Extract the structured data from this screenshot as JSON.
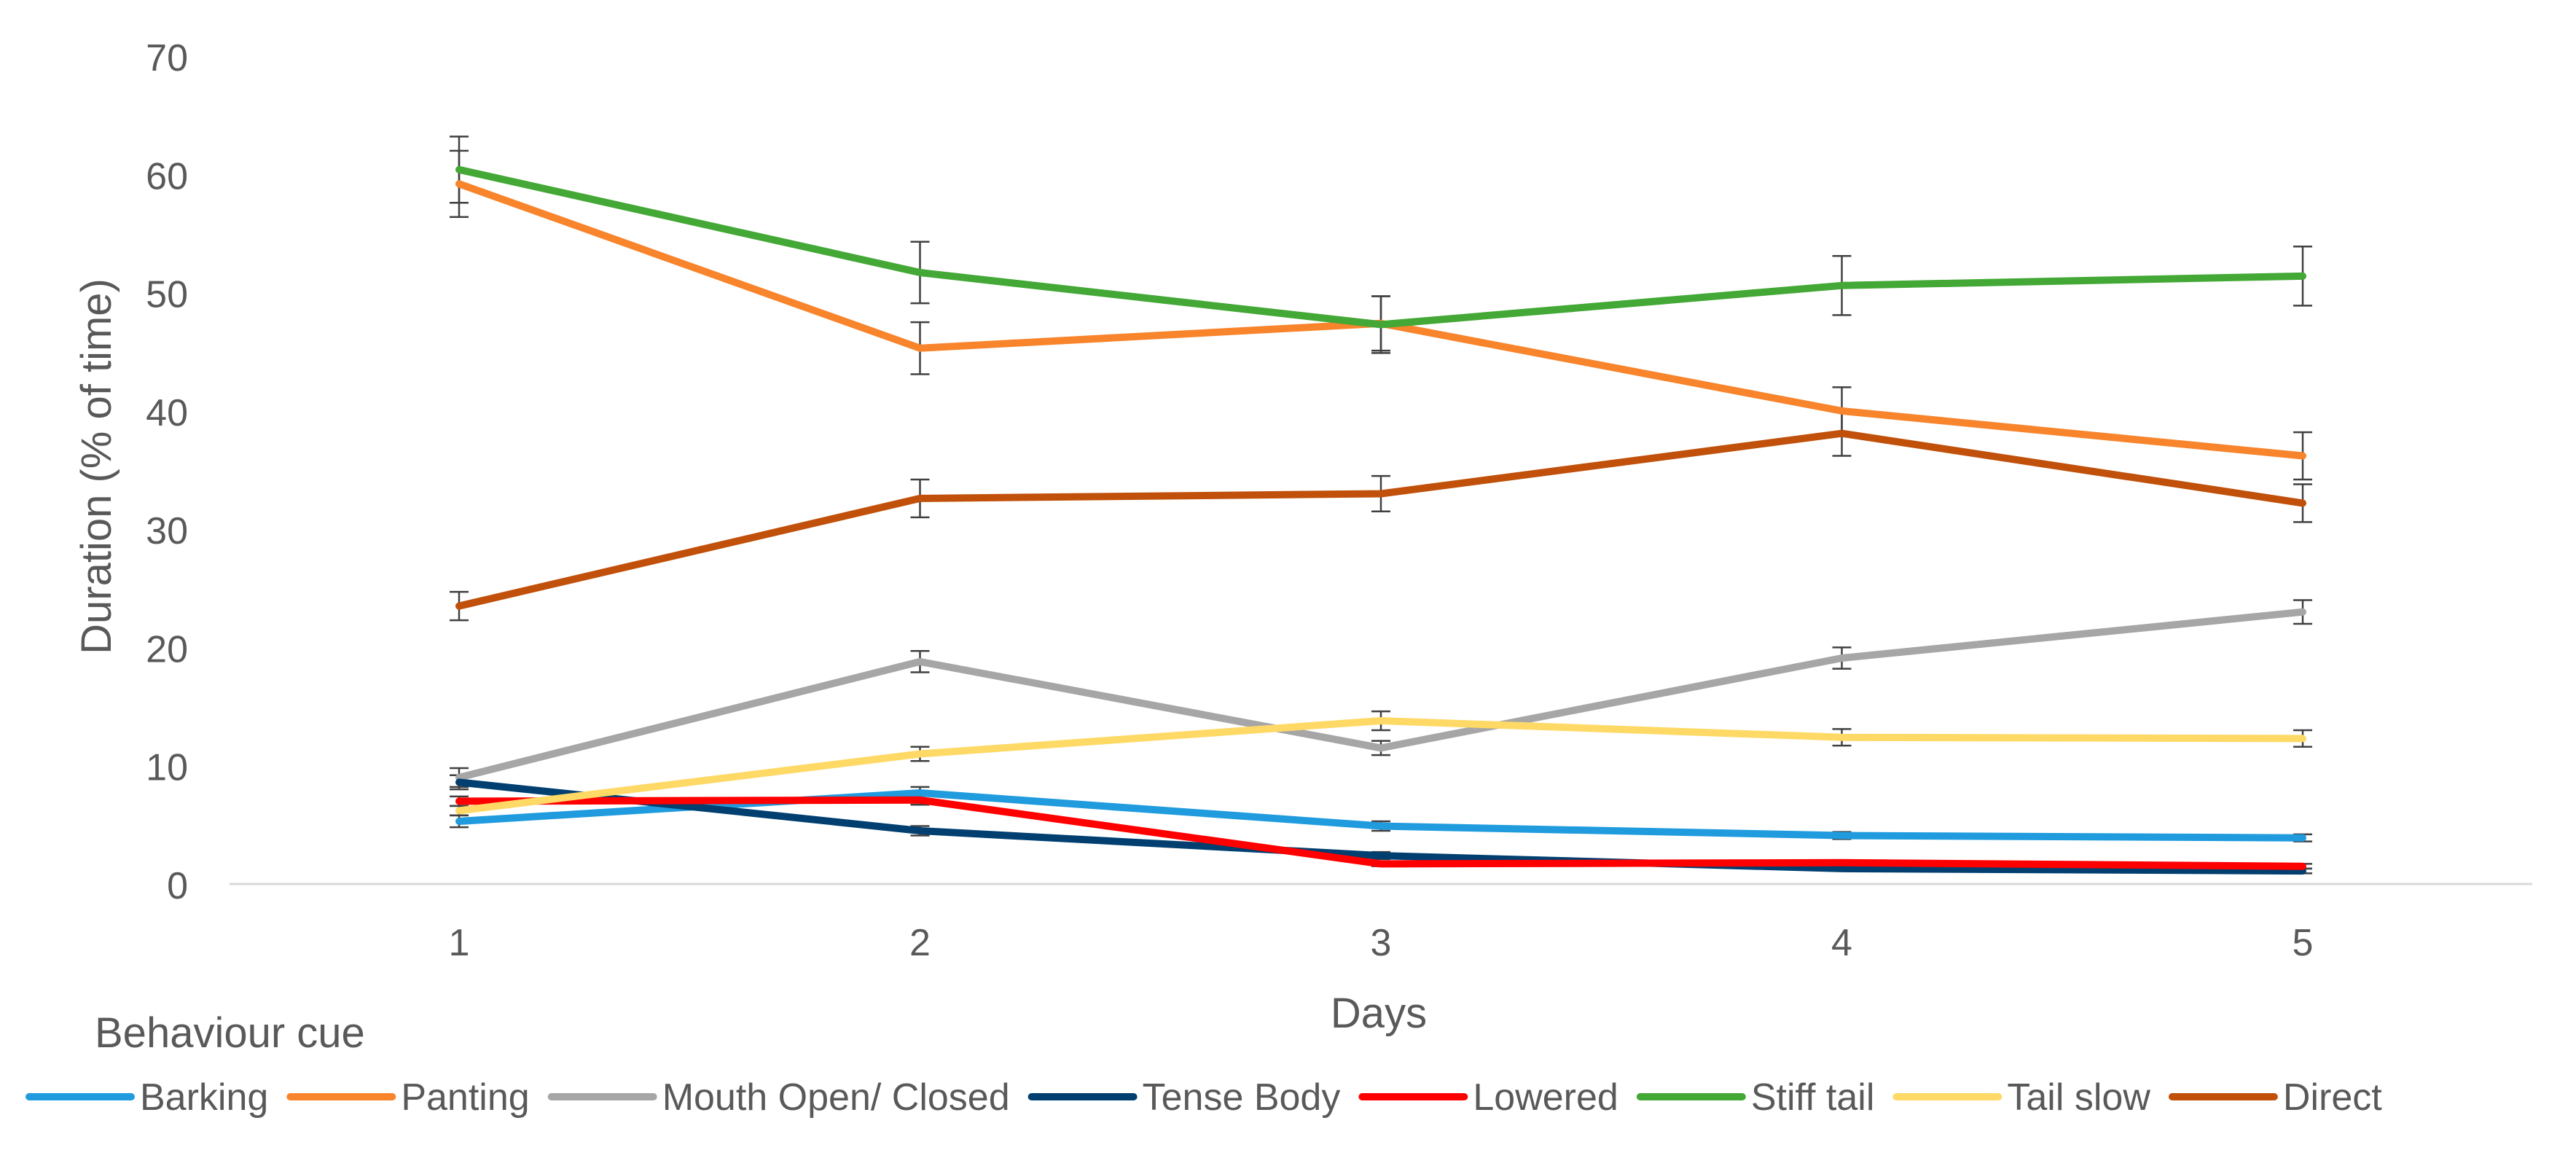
{
  "chart_data": {
    "type": "line",
    "title": "",
    "xlabel": "Days",
    "ylabel": "Duration (% of time)",
    "x": [
      1,
      2,
      3,
      4,
      5
    ],
    "x_tick_labels": [
      "1",
      "2",
      "3",
      "4",
      "5"
    ],
    "ylim": [
      0,
      70
    ],
    "y_ticks": [
      0,
      10,
      20,
      30,
      40,
      50,
      60,
      70
    ],
    "y_tick_labels": [
      "0",
      "10",
      "20",
      "30",
      "40",
      "50",
      "60",
      "70"
    ],
    "grid": false,
    "legend_title": "Behaviour cue",
    "legend_position": "bottom",
    "series": [
      {
        "name": "Barking",
        "color": "#1F9BDE",
        "values": [
          5.3,
          7.7,
          4.9,
          4.1,
          3.9
        ],
        "errors": [
          0.5,
          0.5,
          0.4,
          0.3,
          0.3
        ]
      },
      {
        "name": "Panting",
        "color": "#F8842C",
        "values": [
          59.2,
          45.3,
          47.4,
          40.0,
          36.2
        ],
        "errors": [
          2.8,
          2.2,
          2.3,
          2.0,
          2.0
        ]
      },
      {
        "name": "Mouth Open/ Closed",
        "color": "#A6A6A6",
        "values": [
          9.0,
          18.8,
          11.5,
          19.1,
          23.0
        ],
        "errors": [
          0.8,
          0.9,
          0.6,
          0.9,
          1.0
        ]
      },
      {
        "name": "Tense Body",
        "color": "#003F70",
        "values": [
          8.6,
          4.5,
          2.4,
          1.3,
          1.1
        ],
        "errors": [
          0.6,
          0.4,
          0.3,
          0.2,
          0.2
        ]
      },
      {
        "name": "Lowered",
        "color": "#FF0000",
        "values": [
          7.0,
          7.1,
          1.7,
          1.8,
          1.5
        ],
        "errors": [
          0.4,
          0.4,
          0.2,
          0.2,
          0.2
        ]
      },
      {
        "name": "Stiff tail",
        "color": "#43A835",
        "values": [
          60.4,
          51.7,
          47.3,
          50.6,
          51.4
        ],
        "errors": [
          2.8,
          2.6,
          2.4,
          2.5,
          2.5
        ]
      },
      {
        "name": "Tail slow",
        "color": "#FFD966",
        "values": [
          6.2,
          11.0,
          13.8,
          12.4,
          12.3
        ],
        "errors": [
          0.4,
          0.6,
          0.8,
          0.7,
          0.7
        ]
      },
      {
        "name": "Direct",
        "color": "#C0500A",
        "values": [
          23.5,
          32.6,
          33.0,
          38.1,
          32.2
        ],
        "errors": [
          1.2,
          1.6,
          1.5,
          1.9,
          1.6
        ]
      }
    ]
  }
}
